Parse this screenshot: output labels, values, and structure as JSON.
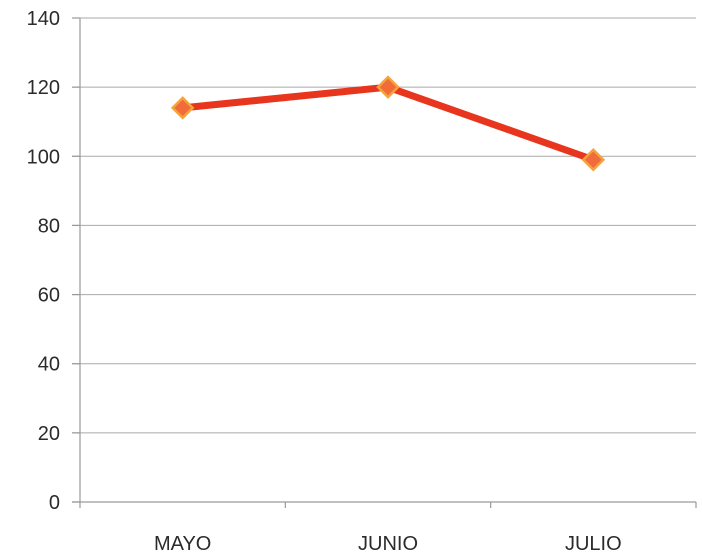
{
  "chart_data": {
    "type": "line",
    "categories": [
      "MAYO",
      "JUNIO",
      "JULIO"
    ],
    "series": [
      {
        "values": [
          114,
          120,
          99
        ],
        "color": "#e8361e",
        "marker_color": "#f26b3a",
        "marker_edge": "#f4a43a"
      }
    ],
    "title": "",
    "xlabel": "",
    "ylabel": "",
    "ylim": [
      0,
      140
    ],
    "yticks": [
      0,
      20,
      40,
      60,
      80,
      100,
      120,
      140
    ],
    "grid": true,
    "legend": "none",
    "marker": "diamond"
  }
}
